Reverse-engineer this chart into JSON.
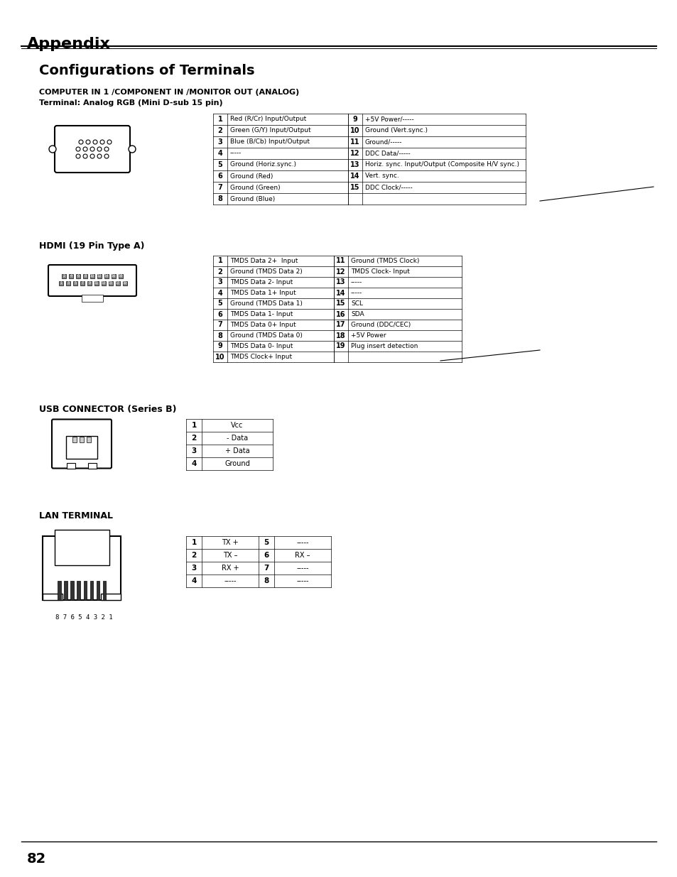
{
  "bg_color": "#ffffff",
  "text_color": "#000000",
  "page_title": "Appendix",
  "section_title": "Configurations of Terminals",
  "computer_header1": "COMPUTER IN 1 /COMPONENT IN /MONITOR OUT (ANALOG)",
  "computer_header2": "Terminal: Analog RGB (Mini D-sub 15 pin)",
  "computer_table_left": [
    [
      "1",
      "Red (R/Cr) Input/Output"
    ],
    [
      "2",
      "Green (G/Y) Input/Output"
    ],
    [
      "3",
      "Blue (B/Cb) Input/Output"
    ],
    [
      "4",
      "-----"
    ],
    [
      "5",
      "Ground (Horiz.sync.)"
    ],
    [
      "6",
      "Ground (Red)"
    ],
    [
      "7",
      "Ground (Green)"
    ],
    [
      "8",
      "Ground (Blue)"
    ]
  ],
  "computer_table_right": [
    [
      "9",
      "+5V Power/-----"
    ],
    [
      "10",
      "Ground (Vert.sync.)"
    ],
    [
      "11",
      "Ground/-----"
    ],
    [
      "12",
      "DDC Data/-----"
    ],
    [
      "13",
      "Horiz. sync. Input/Output (Composite H/V sync.)"
    ],
    [
      "14",
      "Vert. sync."
    ],
    [
      "15",
      "DDC Clock/-----"
    ],
    [
      "",
      ""
    ]
  ],
  "hdmi_header": "HDMI (19 Pin Type A)",
  "hdmi_table_left": [
    [
      "1",
      "TMDS Data 2+  Input"
    ],
    [
      "2",
      "Ground (TMDS Data 2)"
    ],
    [
      "3",
      "TMDS Data 2- Input"
    ],
    [
      "4",
      "TMDS Data 1+ Input"
    ],
    [
      "5",
      "Ground (TMDS Data 1)"
    ],
    [
      "6",
      "TMDS Data 1- Input"
    ],
    [
      "7",
      "TMDS Data 0+ Input"
    ],
    [
      "8",
      "Ground (TMDS Data 0)"
    ],
    [
      "9",
      "TMDS Data 0- Input"
    ],
    [
      "10",
      "TMDS Clock+ Input"
    ]
  ],
  "hdmi_table_right": [
    [
      "11",
      "Ground (TMDS Clock)"
    ],
    [
      "12",
      "TMDS Clock- Input"
    ],
    [
      "13",
      "-----"
    ],
    [
      "14",
      "-----"
    ],
    [
      "15",
      "SCL"
    ],
    [
      "16",
      "SDA"
    ],
    [
      "17",
      "Ground (DDC/CEC)"
    ],
    [
      "18",
      "+5V Power"
    ],
    [
      "19",
      "Plug insert detection"
    ],
    [
      "",
      ""
    ]
  ],
  "usb_header": "USB CONNECTOR (Series B)",
  "usb_table": [
    [
      "1",
      "Vcc"
    ],
    [
      "2",
      "- Data"
    ],
    [
      "3",
      "+ Data"
    ],
    [
      "4",
      "Ground"
    ]
  ],
  "lan_header": "LAN TERMINAL",
  "lan_table_left": [
    [
      "1",
      "TX +"
    ],
    [
      "2",
      "TX –"
    ],
    [
      "3",
      "RX +"
    ],
    [
      "4",
      "-----"
    ]
  ],
  "lan_table_right": [
    [
      "5",
      "-----"
    ],
    [
      "6",
      "RX –"
    ],
    [
      "7",
      "-----"
    ],
    [
      "8",
      "-----"
    ]
  ],
  "lan_numbering": "8 7 6 5 4 3 2 1",
  "page_number": "82"
}
